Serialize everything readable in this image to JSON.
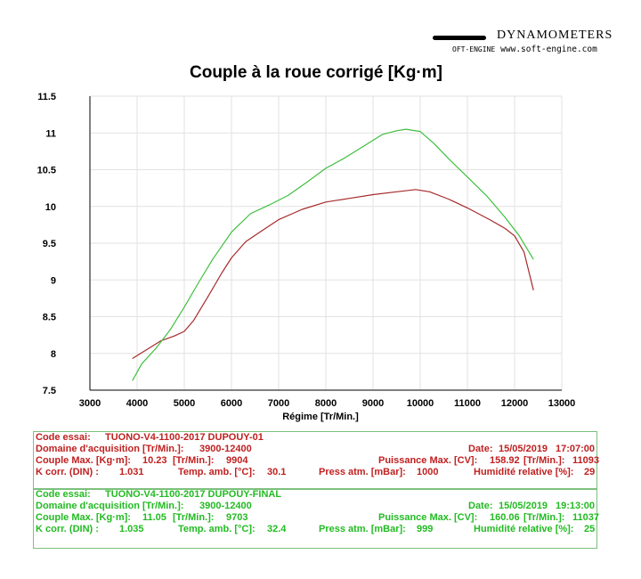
{
  "brand": {
    "name": "DYNAMOMETERS",
    "logo_text": "OFT-ENGINE",
    "website": "www.soft-engine.com"
  },
  "chart_data": {
    "type": "line",
    "title": "Couple à la roue corrigé [Kg·m]",
    "xlabel": "Régime [Tr/Min.]",
    "ylabel": "",
    "xlim": [
      3000,
      13000
    ],
    "ylim": [
      7.5,
      11.5
    ],
    "xticks": [
      "3000",
      "4000",
      "5000",
      "6000",
      "7000",
      "8000",
      "9000",
      "10000",
      "11000",
      "12000",
      "13000"
    ],
    "yticks": [
      "7.5",
      "8",
      "8.5",
      "9",
      "9.5",
      "10",
      "10.5",
      "11",
      "11.5"
    ],
    "grid": true,
    "series": [
      {
        "color": "#a62a2a",
        "x": [
          3900,
          4200,
          4500,
          4800,
          5000,
          5200,
          5500,
          5800,
          6000,
          6300,
          6600,
          7000,
          7500,
          8000,
          8500,
          9000,
          9500,
          9904,
          10200,
          10600,
          11000,
          11500,
          11800,
          12000,
          12200,
          12400
        ],
        "y": [
          7.93,
          8.05,
          8.17,
          8.24,
          8.3,
          8.45,
          8.77,
          9.1,
          9.3,
          9.52,
          9.65,
          9.82,
          9.96,
          10.06,
          10.11,
          10.16,
          10.2,
          10.23,
          10.2,
          10.1,
          9.98,
          9.81,
          9.7,
          9.6,
          9.38,
          8.86
        ]
      },
      {
        "color": "#3fbf3f",
        "x": [
          3900,
          4100,
          4400,
          4700,
          5000,
          5300,
          5600,
          6000,
          6400,
          6800,
          7200,
          7600,
          8000,
          8400,
          8800,
          9200,
          9500,
          9700,
          10000,
          10300,
          10600,
          11000,
          11400,
          11800,
          12100,
          12400
        ],
        "y": [
          7.63,
          7.86,
          8.07,
          8.32,
          8.63,
          8.96,
          9.28,
          9.65,
          9.9,
          10.02,
          10.15,
          10.33,
          10.52,
          10.66,
          10.82,
          10.98,
          11.03,
          11.05,
          11.02,
          10.85,
          10.65,
          10.4,
          10.15,
          9.85,
          9.6,
          9.28
        ]
      }
    ]
  },
  "tests": [
    {
      "code_label": "Code essai:",
      "code_value": "TUONO-V4-1100-2017 DUPOUY-01",
      "domain_label": "Domaine d'acquisition [Tr/Min.]:",
      "domain_value": "3900-12400",
      "date_label": "Date:",
      "date_value": "15/05/2019",
      "time_value": "17:07:00",
      "couple_label": "Couple Max. [Kg·m]:",
      "couple_value": "10.23",
      "trmin_label": "[Tr/Min.]:",
      "couple_rpm": "9904",
      "puissance_label": "Puissance Max. [CV]:",
      "puissance_value": "158.92",
      "puissance_rpm": "11093",
      "kcorr_label": "K corr. (DIN) :",
      "kcorr_value": "1.031",
      "temp_label": "Temp. amb. [°C]:",
      "temp_value": "30.1",
      "press_label": "Press atm. [mBar]:",
      "press_value": "1000",
      "hum_label": "Humidité relative [%]:",
      "hum_value": "29"
    },
    {
      "code_label": "Code essai:",
      "code_value": "TUONO-V4-1100-2017 DUPOUY-FINAL",
      "domain_label": "Domaine d'acquisition [Tr/Min.]:",
      "domain_value": "3900-12400",
      "date_label": "Date:",
      "date_value": "15/05/2019",
      "time_value": "19:13:00",
      "couple_label": "Couple Max. [Kg·m]:",
      "couple_value": "11.05",
      "trmin_label": "[Tr/Min.]:",
      "couple_rpm": "9703",
      "puissance_label": "Puissance Max. [CV]:",
      "puissance_value": "160.06",
      "puissance_rpm": "11037",
      "kcorr_label": "K corr. (DIN) :",
      "kcorr_value": "1.035",
      "temp_label": "Temp. amb. [°C]:",
      "temp_value": "32.4",
      "press_label": "Press atm. [mBar]:",
      "press_value": "999",
      "hum_label": "Humidité relative [%]:",
      "hum_value": "25"
    }
  ]
}
